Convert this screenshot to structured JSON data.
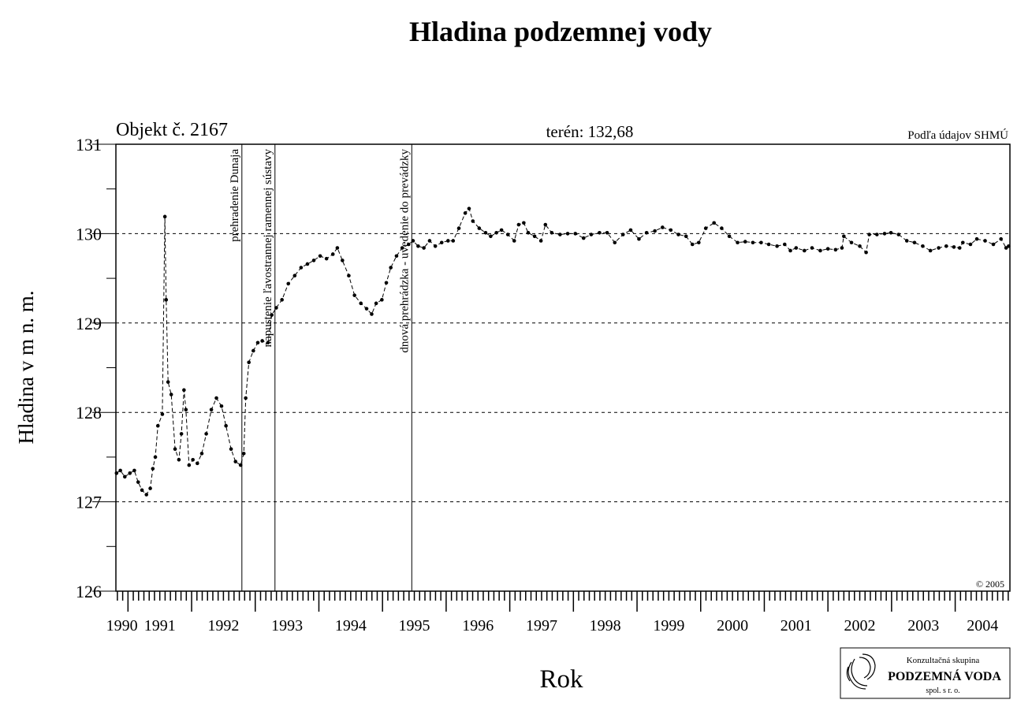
{
  "chart_data": {
    "type": "line",
    "title": "Hladina podzemnej vody",
    "subtitle_left": "Objekt č. 2167",
    "subtitle_center": "terén: 132,68",
    "source": "Podľa údajov SHMÚ",
    "copyright": "© 2005",
    "y_label": "Hladina v m n. m.",
    "x_label": "Rok",
    "logo": {
      "line1": "Konzultačná skupina",
      "line2": "PODZEMNÁ VODA",
      "line3": "spol. s r. o."
    },
    "xlim": [
      1990.81,
      2004.86
    ],
    "ylim": [
      126,
      131
    ],
    "xticks": [
      1990,
      1991,
      1992,
      1993,
      1994,
      1995,
      1996,
      1997,
      1998,
      1999,
      2000,
      2001,
      2002,
      2003,
      2004
    ],
    "yticks": [
      126,
      127,
      128,
      129,
      130,
      131
    ],
    "grid": true,
    "events": [
      {
        "x": 1992.79,
        "label": "prehradenie Dunaja"
      },
      {
        "x": 1993.31,
        "label": "napustenie ľavostrannej ramennej sústavy"
      },
      {
        "x": 1995.46,
        "label": "dnová prehrádzka - uvedenie do prevádzky"
      }
    ],
    "series": [
      {
        "color": "#000000",
        "x": [
          1990.82,
          1990.88,
          1990.95,
          1991.03,
          1991.1,
          1991.16,
          1991.22,
          1991.29,
          1991.35,
          1991.39,
          1991.43,
          1991.47,
          1991.54,
          1991.58,
          1991.6,
          1991.63,
          1991.68,
          1991.74,
          1991.8,
          1991.84,
          1991.88,
          1991.91,
          1991.96,
          1992.02,
          1992.09,
          1992.16,
          1992.23,
          1992.31,
          1992.39,
          1992.47,
          1992.54,
          1992.62,
          1992.69,
          1992.77,
          1992.82,
          1992.85,
          1992.9,
          1992.97,
          1993.04,
          1993.11,
          1993.2,
          1993.26,
          1993.33,
          1993.42,
          1993.52,
          1993.62,
          1993.72,
          1993.82,
          1993.92,
          1994.02,
          1994.12,
          1994.22,
          1994.29,
          1994.37,
          1994.47,
          1994.56,
          1994.66,
          1994.75,
          1994.83,
          1994.9,
          1994.99,
          1995.06,
          1995.13,
          1995.22,
          1995.31,
          1995.41,
          1995.48,
          1995.56,
          1995.65,
          1995.74,
          1995.83,
          1995.93,
          1996.03,
          1996.11,
          1996.2,
          1996.3,
          1996.36,
          1996.42,
          1996.52,
          1996.62,
          1996.7,
          1996.79,
          1996.87,
          1996.97,
          1997.07,
          1997.14,
          1997.22,
          1997.29,
          1997.39,
          1997.49,
          1997.56,
          1997.66,
          1997.79,
          1997.91,
          1998.03,
          1998.16,
          1998.28,
          1998.41,
          1998.53,
          1998.65,
          1998.78,
          1998.9,
          1999.03,
          1999.15,
          1999.28,
          1999.4,
          1999.53,
          1999.65,
          1999.77,
          1999.87,
          1999.97,
          2000.08,
          2000.21,
          2000.33,
          2000.45,
          2000.58,
          2000.7,
          2000.82,
          2000.95,
          2001.07,
          2001.2,
          2001.32,
          2001.41,
          2001.5,
          2001.63,
          2001.75,
          2001.88,
          2002.0,
          2002.12,
          2002.22,
          2002.25,
          2002.37,
          2002.5,
          2002.6,
          2002.65,
          2002.77,
          2002.89,
          2002.99,
          2003.11,
          2003.24,
          2003.36,
          2003.49,
          2003.61,
          2003.74,
          2003.86,
          2003.98,
          2004.07,
          2004.12,
          2004.24,
          2004.34,
          2004.47,
          2004.6,
          2004.72,
          2004.8,
          2004.84
        ],
        "values": [
          127.32,
          127.35,
          127.28,
          127.32,
          127.35,
          127.22,
          127.13,
          127.08,
          127.15,
          127.37,
          127.5,
          127.85,
          127.98,
          130.19,
          129.26,
          128.34,
          128.2,
          127.59,
          127.47,
          127.76,
          128.25,
          128.03,
          127.41,
          127.47,
          127.43,
          127.54,
          127.76,
          128.03,
          128.16,
          128.07,
          127.85,
          127.59,
          127.45,
          127.41,
          127.54,
          128.16,
          128.56,
          128.69,
          128.78,
          128.8,
          128.78,
          129.09,
          129.17,
          129.26,
          129.44,
          129.53,
          129.62,
          129.66,
          129.7,
          129.75,
          129.72,
          129.77,
          129.84,
          129.7,
          129.53,
          129.31,
          129.22,
          129.16,
          129.1,
          129.22,
          129.26,
          129.45,
          129.62,
          129.75,
          129.84,
          129.88,
          129.92,
          129.86,
          129.84,
          129.92,
          129.86,
          129.9,
          129.92,
          129.92,
          130.06,
          130.23,
          130.28,
          130.14,
          130.06,
          130.01,
          129.97,
          130.01,
          130.04,
          129.99,
          129.92,
          130.1,
          130.12,
          130.01,
          129.97,
          129.92,
          130.1,
          130.01,
          129.99,
          130.0,
          130.0,
          129.95,
          129.99,
          130.01,
          130.01,
          129.9,
          129.99,
          130.04,
          129.94,
          130.01,
          130.03,
          130.07,
          130.04,
          129.99,
          129.97,
          129.88,
          129.9,
          130.06,
          130.12,
          130.06,
          129.97,
          129.9,
          129.91,
          129.9,
          129.9,
          129.88,
          129.86,
          129.88,
          129.81,
          129.84,
          129.81,
          129.84,
          129.81,
          129.83,
          129.82,
          129.84,
          129.97,
          129.9,
          129.86,
          129.79,
          129.99,
          129.99,
          130.0,
          130.01,
          129.99,
          129.92,
          129.9,
          129.86,
          129.81,
          129.84,
          129.86,
          129.85,
          129.84,
          129.9,
          129.88,
          129.94,
          129.92,
          129.88,
          129.94,
          129.84,
          129.86
        ]
      }
    ]
  }
}
